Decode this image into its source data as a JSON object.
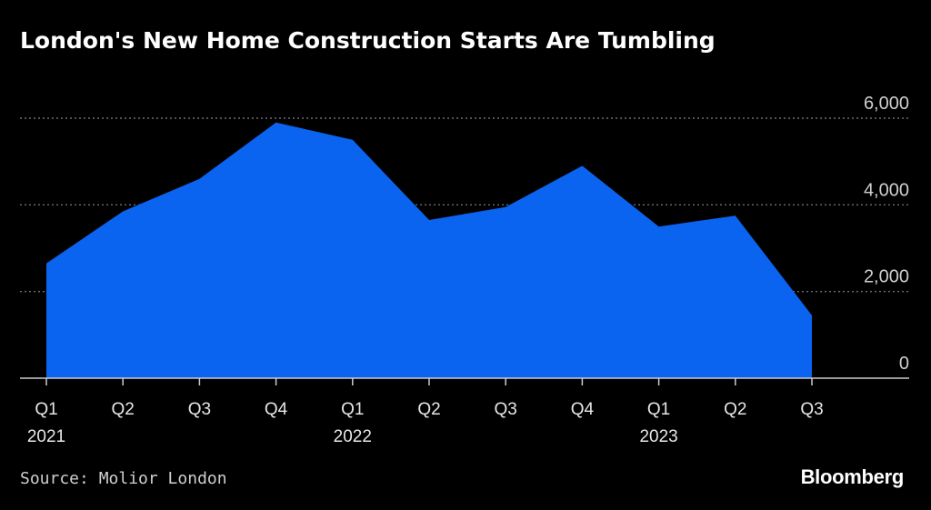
{
  "colors": {
    "background": "#000000",
    "area_fill": "#0a64f0",
    "grid": "#6e6e6e",
    "axis": "#cccccc"
  },
  "footer": {
    "source": "Source: Molior London",
    "brand": "Bloomberg"
  },
  "chart_data": {
    "type": "area",
    "title": "London's New Home Construction Starts Are Tumbling",
    "xlabel": "",
    "ylabel": "",
    "x_quarters": [
      "Q1",
      "Q2",
      "Q3",
      "Q4",
      "Q1",
      "Q2",
      "Q3",
      "Q4",
      "Q1",
      "Q2",
      "Q3"
    ],
    "x_years": [
      "2021",
      "",
      "",
      "",
      "2022",
      "",
      "",
      "",
      "2023",
      "",
      ""
    ],
    "series": [
      {
        "values": [
          2650,
          3850,
          4600,
          5900,
          5500,
          3650,
          3950,
          4900,
          3500,
          3750,
          1450
        ]
      }
    ],
    "yticks": [
      "0",
      "2,000",
      "4,000",
      "6,000"
    ],
    "ylim": [
      0,
      6000
    ],
    "y_axis_position": "right",
    "grid": true,
    "legend": "none"
  }
}
